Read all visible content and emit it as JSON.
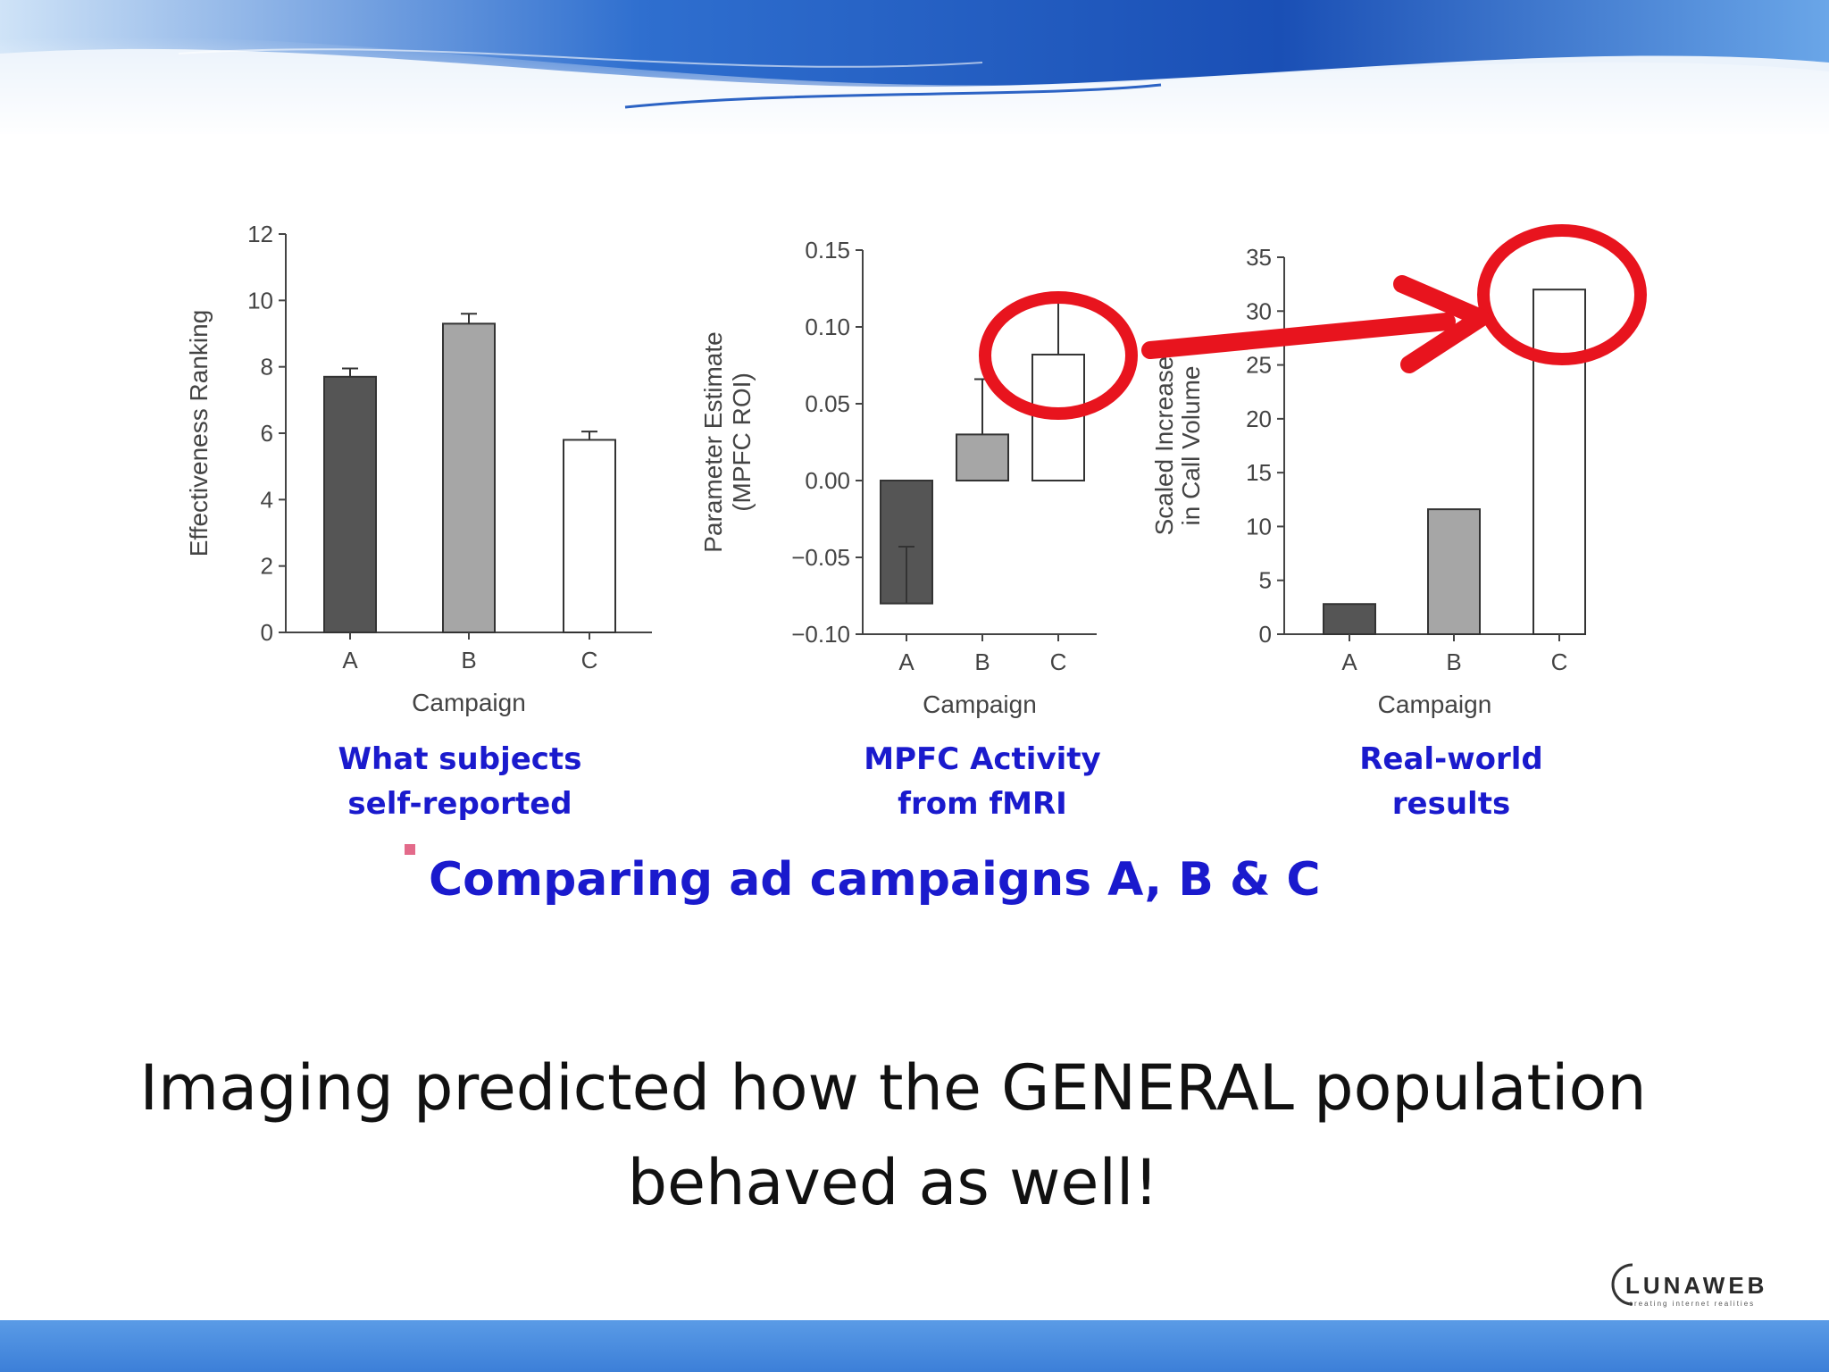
{
  "slide": {
    "statement": "Imaging predicted how the GENERAL population behaved as well!",
    "main_caption": "Comparing ad campaigns A, B & C",
    "logo_text": "LUNAWEB",
    "logo_tagline": "creating internet realities"
  },
  "colors": {
    "caption_blue": "#1a1acd",
    "highlight_red": "#e8141e",
    "bar_a": "#555555",
    "bar_b": "#a6a6a6",
    "bar_c": "#ffffff"
  },
  "captions": [
    {
      "line1": "What subjects",
      "line2": "self-reported"
    },
    {
      "line1": "MPFC Activity",
      "line2": "from fMRI"
    },
    {
      "line1": "Real-world",
      "line2": "results"
    }
  ],
  "chart_data": [
    {
      "type": "bar",
      "categories": [
        "A",
        "B",
        "C"
      ],
      "values": [
        7.7,
        9.3,
        5.8
      ],
      "error_bars": [
        0.25,
        0.3,
        0.25
      ],
      "xlabel": "Campaign",
      "ylabel": "Effectiveness Ranking",
      "ylim": [
        0,
        12
      ],
      "yticks": [
        "0",
        "2",
        "4",
        "6",
        "8",
        "10",
        "12"
      ],
      "grid": false
    },
    {
      "type": "bar",
      "categories": [
        "A",
        "B",
        "C"
      ],
      "values": [
        -0.08,
        0.03,
        0.082
      ],
      "error_bars": [
        0.037,
        0.036,
        0.035
      ],
      "xlabel": "Campaign",
      "ylabel": "Parameter Estimate",
      "ylabel2": "(MPFC ROI)",
      "ylim": [
        -0.1,
        0.15
      ],
      "yticks": [
        "−0.10",
        "−0.05",
        "0.00",
        "0.05",
        "0.10",
        "0.15"
      ],
      "grid": false,
      "highlight": "C"
    },
    {
      "type": "bar",
      "categories": [
        "A",
        "B",
        "C"
      ],
      "values": [
        2.8,
        11.6,
        32
      ],
      "xlabel": "Campaign",
      "ylabel": "Scaled Increase",
      "ylabel2": "in Call Volume",
      "ylim": [
        0,
        35
      ],
      "yticks": [
        "0",
        "5",
        "10",
        "15",
        "20",
        "25",
        "30",
        "35"
      ],
      "grid": false,
      "highlight": "C"
    }
  ]
}
